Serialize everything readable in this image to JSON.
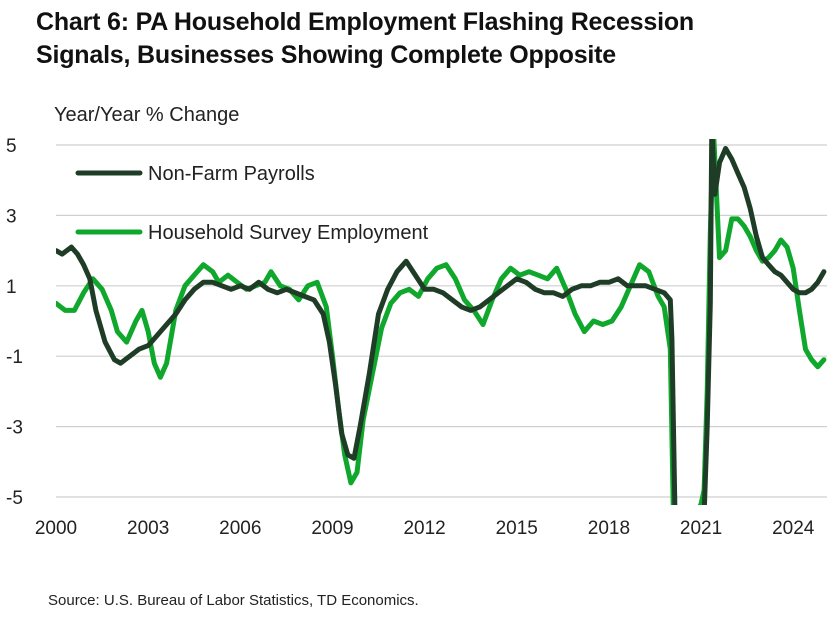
{
  "title_line1": "Chart 6: PA Household Employment Flashing Recession",
  "title_line2": "Signals, Businesses Showing Complete Opposite",
  "source": "Source: U.S. Bureau of Labor Statistics, TD Economics.",
  "chart_data": {
    "type": "line",
    "ylabel": "Year/Year % Change",
    "ylim": [
      -5,
      5
    ],
    "xlim": [
      2000,
      2025.1
    ],
    "y_ticks": [
      "5",
      "3",
      "1",
      "-1",
      "-3",
      "-5"
    ],
    "y_tick_values": [
      5,
      3,
      1,
      -1,
      -3,
      -5
    ],
    "x_ticks": [
      "2000",
      "2003",
      "2006",
      "2009",
      "2012",
      "2015",
      "2018",
      "2021",
      "2024"
    ],
    "x_tick_values": [
      2000,
      2003,
      2006,
      2009,
      2012,
      2015,
      2018,
      2021,
      2024
    ],
    "grid": "horizontal",
    "legend_position": "top-left",
    "series": [
      {
        "name": "Non-Farm Payrolls",
        "color": "#1f3d26",
        "x": [
          2000,
          2000.2,
          2000.5,
          2000.7,
          2000.9,
          2001.1,
          2001.3,
          2001.6,
          2001.9,
          2002.1,
          2002.4,
          2002.7,
          2003.0,
          2003.3,
          2003.6,
          2003.9,
          2004.2,
          2004.5,
          2004.8,
          2005.1,
          2005.4,
          2005.7,
          2006.0,
          2006.3,
          2006.6,
          2006.9,
          2007.2,
          2007.5,
          2007.8,
          2008.1,
          2008.4,
          2008.7,
          2008.9,
          2009.1,
          2009.3,
          2009.5,
          2009.7,
          2009.9,
          2010.2,
          2010.5,
          2010.8,
          2011.1,
          2011.4,
          2011.7,
          2012.0,
          2012.3,
          2012.6,
          2012.9,
          2013.2,
          2013.5,
          2013.8,
          2014.1,
          2014.4,
          2014.7,
          2015.0,
          2015.3,
          2015.6,
          2015.9,
          2016.2,
          2016.5,
          2016.8,
          2017.1,
          2017.4,
          2017.7,
          2018.0,
          2018.3,
          2018.6,
          2018.9,
          2019.2,
          2019.5,
          2019.8,
          2020.0,
          2020.05,
          2020.15,
          2020.3,
          2020.6,
          2020.9,
          2021.1,
          2021.2,
          2021.3,
          2021.35,
          2021.45,
          2021.6,
          2021.8,
          2022.0,
          2022.2,
          2022.4,
          2022.6,
          2022.8,
          2023.0,
          2023.2,
          2023.4,
          2023.6,
          2023.8,
          2024.0,
          2024.2,
          2024.4,
          2024.6,
          2024.8,
          2025.0
        ],
        "y": [
          2.0,
          1.9,
          2.1,
          1.9,
          1.6,
          1.2,
          0.3,
          -0.6,
          -1.1,
          -1.2,
          -1.0,
          -0.8,
          -0.7,
          -0.4,
          -0.1,
          0.2,
          0.6,
          0.9,
          1.1,
          1.1,
          1.0,
          0.9,
          1.0,
          0.9,
          1.1,
          0.9,
          0.8,
          0.9,
          0.8,
          0.7,
          0.6,
          0.2,
          -0.6,
          -1.8,
          -3.2,
          -3.8,
          -3.9,
          -3.0,
          -1.5,
          0.2,
          0.9,
          1.4,
          1.7,
          1.3,
          0.9,
          0.9,
          0.8,
          0.6,
          0.4,
          0.3,
          0.4,
          0.6,
          0.8,
          1.0,
          1.2,
          1.1,
          0.9,
          0.8,
          0.8,
          0.7,
          0.9,
          1.0,
          1.0,
          1.1,
          1.1,
          1.2,
          1.0,
          1.0,
          1.0,
          0.9,
          0.8,
          0.6,
          -0.5,
          -5.5,
          -5.5,
          -5.5,
          -5.5,
          -5.5,
          -3.0,
          0.5,
          5.5,
          3.6,
          4.5,
          4.9,
          4.6,
          4.2,
          3.8,
          3.2,
          2.4,
          1.8,
          1.6,
          1.4,
          1.3,
          1.1,
          0.9,
          0.8,
          0.8,
          0.9,
          1.1,
          1.4
        ]
      },
      {
        "name": "Household Survey Employment",
        "color": "#10a82c",
        "x": [
          2000,
          2000.3,
          2000.6,
          2000.9,
          2001.2,
          2001.5,
          2001.8,
          2002.0,
          2002.3,
          2002.6,
          2002.8,
          2003.0,
          2003.2,
          2003.4,
          2003.6,
          2003.9,
          2004.2,
          2004.5,
          2004.8,
          2005.1,
          2005.3,
          2005.6,
          2005.9,
          2006.2,
          2006.5,
          2006.8,
          2007.0,
          2007.3,
          2007.6,
          2007.9,
          2008.2,
          2008.5,
          2008.8,
          2009.0,
          2009.2,
          2009.4,
          2009.6,
          2009.8,
          2010.0,
          2010.3,
          2010.6,
          2010.9,
          2011.2,
          2011.5,
          2011.8,
          2012.1,
          2012.4,
          2012.7,
          2013.0,
          2013.3,
          2013.6,
          2013.9,
          2014.2,
          2014.5,
          2014.8,
          2015.1,
          2015.4,
          2015.7,
          2016.0,
          2016.3,
          2016.6,
          2016.9,
          2017.2,
          2017.5,
          2017.8,
          2018.1,
          2018.4,
          2018.7,
          2019.0,
          2019.3,
          2019.6,
          2019.8,
          2020.0,
          2020.1,
          2020.25,
          2020.5,
          2020.8,
          2021.0,
          2021.1,
          2021.2,
          2021.3,
          2021.4,
          2021.6,
          2021.8,
          2022.0,
          2022.2,
          2022.4,
          2022.6,
          2022.8,
          2023.0,
          2023.2,
          2023.4,
          2023.6,
          2023.8,
          2024.0,
          2024.2,
          2024.4,
          2024.6,
          2024.8,
          2025.0
        ],
        "y": [
          0.5,
          0.3,
          0.3,
          0.8,
          1.2,
          0.9,
          0.3,
          -0.3,
          -0.6,
          0.0,
          0.3,
          -0.3,
          -1.2,
          -1.6,
          -1.2,
          0.3,
          1.0,
          1.3,
          1.6,
          1.4,
          1.1,
          1.3,
          1.1,
          0.9,
          1.0,
          1.1,
          1.4,
          1.0,
          0.9,
          0.6,
          1.0,
          1.1,
          0.4,
          -1.0,
          -2.5,
          -3.8,
          -4.6,
          -4.3,
          -2.8,
          -1.5,
          -0.2,
          0.5,
          0.8,
          0.9,
          0.7,
          1.2,
          1.5,
          1.6,
          1.2,
          0.6,
          0.3,
          -0.1,
          0.6,
          1.2,
          1.5,
          1.3,
          1.4,
          1.3,
          1.2,
          1.5,
          0.9,
          0.2,
          -0.3,
          0.0,
          -0.1,
          0.0,
          0.4,
          1.0,
          1.6,
          1.4,
          0.7,
          0.4,
          -0.8,
          -5.5,
          -5.5,
          -5.5,
          -5.5,
          -5.2,
          -4.8,
          -2.0,
          2.5,
          5.5,
          1.8,
          2.0,
          2.9,
          2.9,
          2.7,
          2.4,
          2.0,
          1.7,
          1.8,
          2.0,
          2.3,
          2.1,
          1.5,
          0.3,
          -0.8,
          -1.1,
          -1.3,
          -1.1
        ]
      }
    ]
  }
}
